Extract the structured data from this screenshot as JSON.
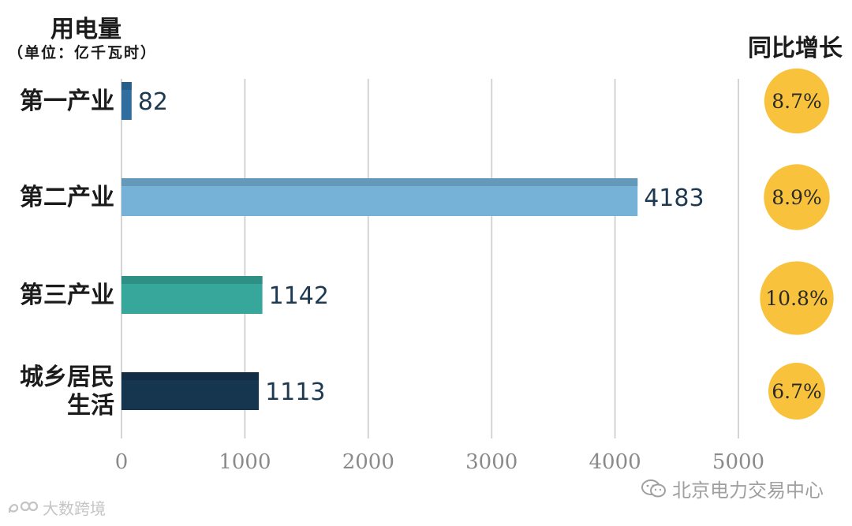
{
  "chart_data": {
    "type": "bar",
    "orientation": "horizontal",
    "ylabel": "用电量",
    "unit": "（单位：亿千瓦时）",
    "categories": [
      "第一产业",
      "第二产业",
      "第三产业",
      "城乡居民\n生活"
    ],
    "values": [
      82,
      4183,
      1142,
      1113
    ],
    "value_labels": [
      "82",
      "4183",
      "1142",
      "1113"
    ],
    "colors": [
      "#2f6e9e",
      "#76b2d8",
      "#36a79a",
      "#16364f"
    ],
    "xlim": [
      0,
      5000
    ],
    "xticks": [
      0,
      1000,
      2000,
      3000,
      4000,
      5000
    ],
    "xtick_labels": [
      "0",
      "1000",
      "2000",
      "3000",
      "4000",
      "5000"
    ],
    "grid": true,
    "growth": {
      "title": "同比增长",
      "values": [
        8.7,
        8.9,
        10.8,
        6.7
      ],
      "labels": [
        "8.7%",
        "8.9%",
        "10.8%",
        "6.7%"
      ],
      "color": "#f8c23c"
    }
  },
  "watermarks": {
    "right": "北京电力交易中心",
    "left": "大数跨境"
  }
}
